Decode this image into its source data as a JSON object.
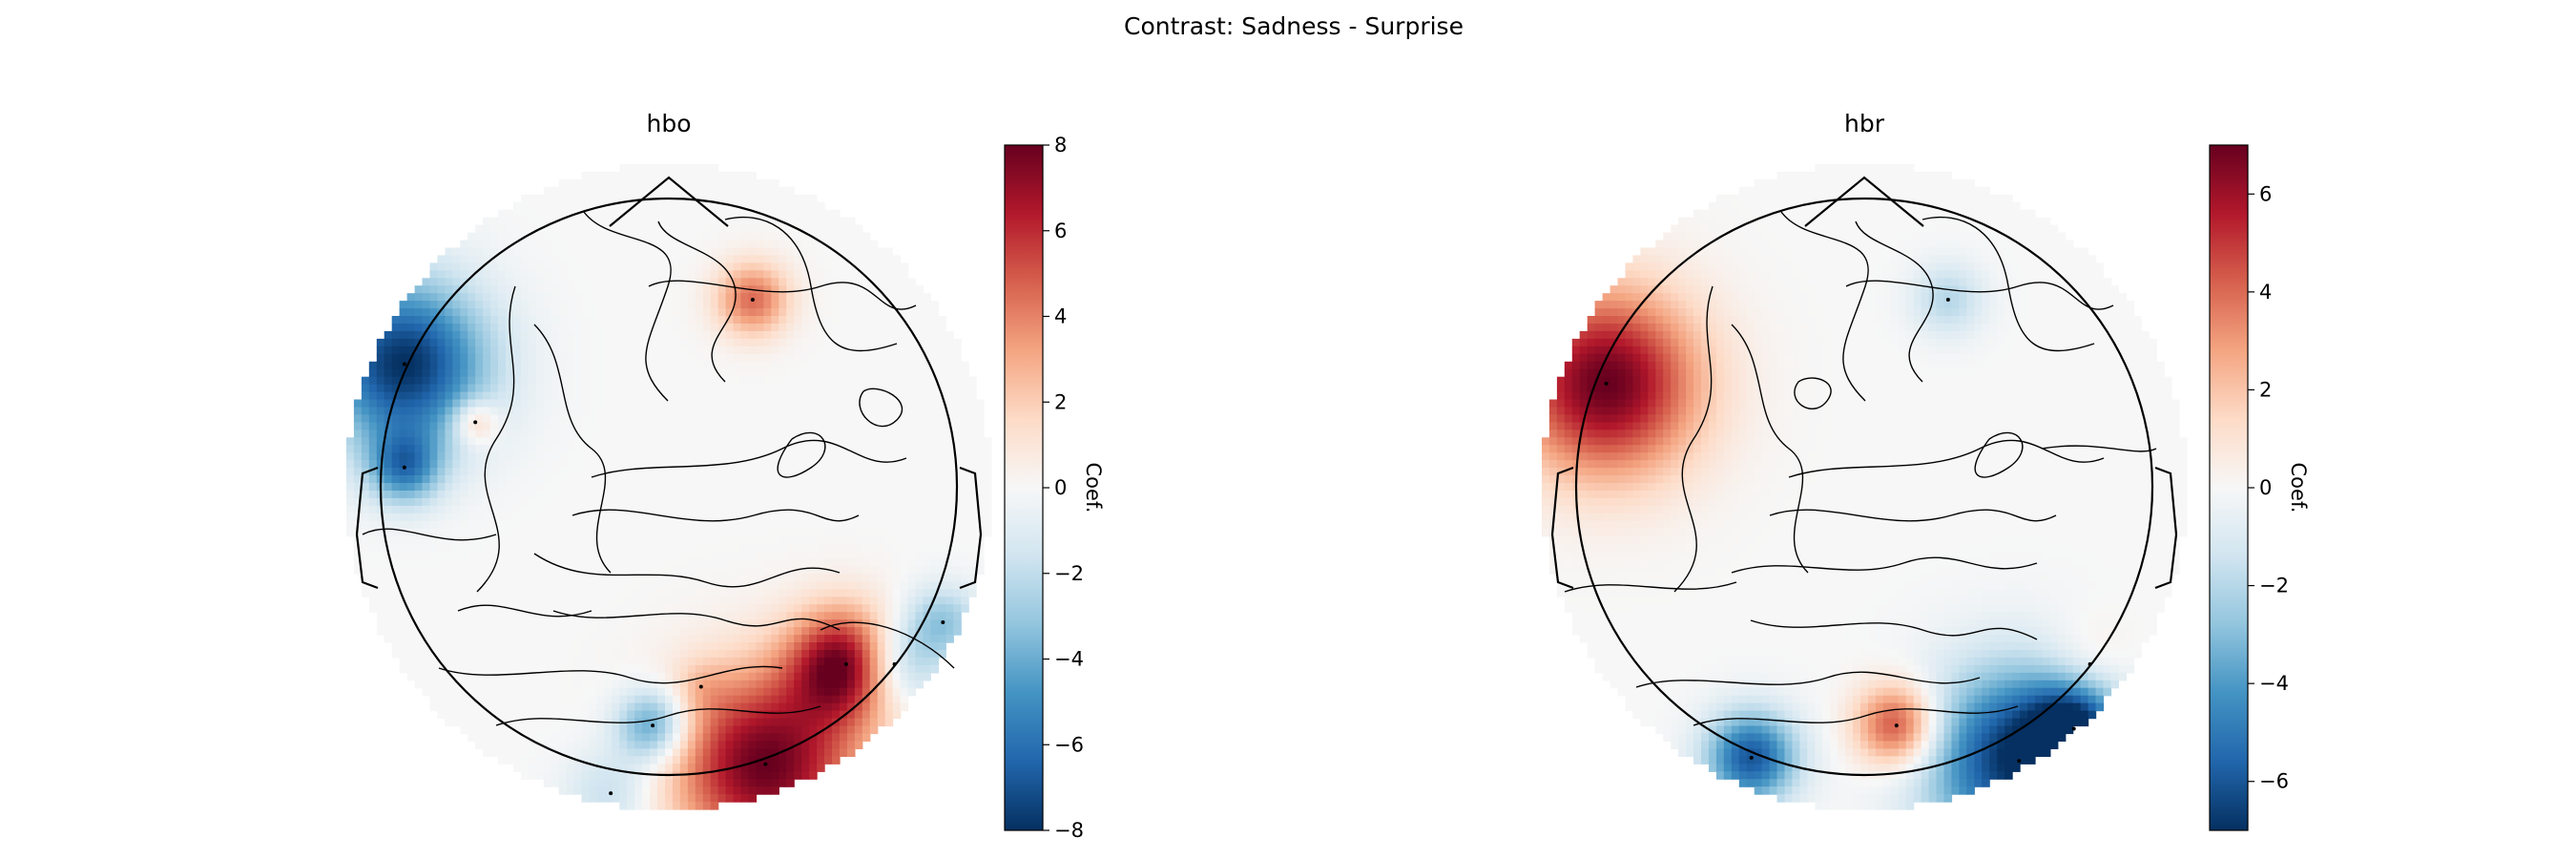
{
  "figure": {
    "suptitle": "Contrast: Sadness - Surprise"
  },
  "chart_data": [
    {
      "type": "heatmap",
      "title": "hbo",
      "colorbar": {
        "label": "Coef.",
        "range": [
          -8,
          8
        ],
        "ticks": [
          8,
          6,
          4,
          2,
          0,
          -2,
          -4,
          -6,
          -8
        ],
        "tick_labels": [
          "8",
          "6",
          "4",
          "2",
          "0",
          "−2",
          "−4",
          "−6",
          "−8"
        ],
        "colormap": "RdBu_r"
      },
      "blobs": [
        {
          "x": -0.82,
          "y": 0.38,
          "value": -8,
          "spread": 0.18
        },
        {
          "x": -0.82,
          "y": 0.06,
          "value": -5,
          "spread": 0.08
        },
        {
          "x": -0.6,
          "y": 0.2,
          "value": 3,
          "spread": 0.05
        },
        {
          "x": 0.26,
          "y": 0.58,
          "value": 4.5,
          "spread": 0.08
        },
        {
          "x": 0.3,
          "y": -0.86,
          "value": 8,
          "spread": 0.2
        },
        {
          "x": 0.55,
          "y": -0.55,
          "value": 8,
          "spread": 0.12
        },
        {
          "x": -0.05,
          "y": -0.74,
          "value": -5,
          "spread": 0.08
        },
        {
          "x": -0.18,
          "y": -0.95,
          "value": -2,
          "spread": 0.1
        },
        {
          "x": 0.7,
          "y": -0.55,
          "value": -4,
          "spread": 0.1
        },
        {
          "x": 0.85,
          "y": -0.42,
          "value": -3,
          "spread": 0.08
        },
        {
          "x": 0.1,
          "y": -0.62,
          "value": 1,
          "spread": 0.06
        }
      ]
    },
    {
      "type": "heatmap",
      "title": "hbr",
      "colorbar": {
        "label": "Coef.",
        "range": [
          -7,
          7
        ],
        "ticks": [
          6,
          4,
          2,
          0,
          -2,
          -4,
          -6
        ],
        "tick_labels": [
          "6",
          "4",
          "2",
          "0",
          "−2",
          "−4",
          "−6"
        ],
        "colormap": "RdBu_r"
      },
      "blobs": [
        {
          "x": -0.8,
          "y": 0.32,
          "value": 7,
          "spread": 0.2
        },
        {
          "x": 0.26,
          "y": 0.58,
          "value": -2,
          "spread": 0.08
        },
        {
          "x": 0.1,
          "y": -0.74,
          "value": 5,
          "spread": 0.09
        },
        {
          "x": -0.35,
          "y": -0.84,
          "value": -6,
          "spread": 0.1
        },
        {
          "x": 0.48,
          "y": -0.85,
          "value": -7,
          "spread": 0.2
        },
        {
          "x": 0.65,
          "y": -0.75,
          "value": -5,
          "spread": 0.1
        },
        {
          "x": 0.7,
          "y": -0.55,
          "value": 1,
          "spread": 0.1
        }
      ]
    }
  ]
}
